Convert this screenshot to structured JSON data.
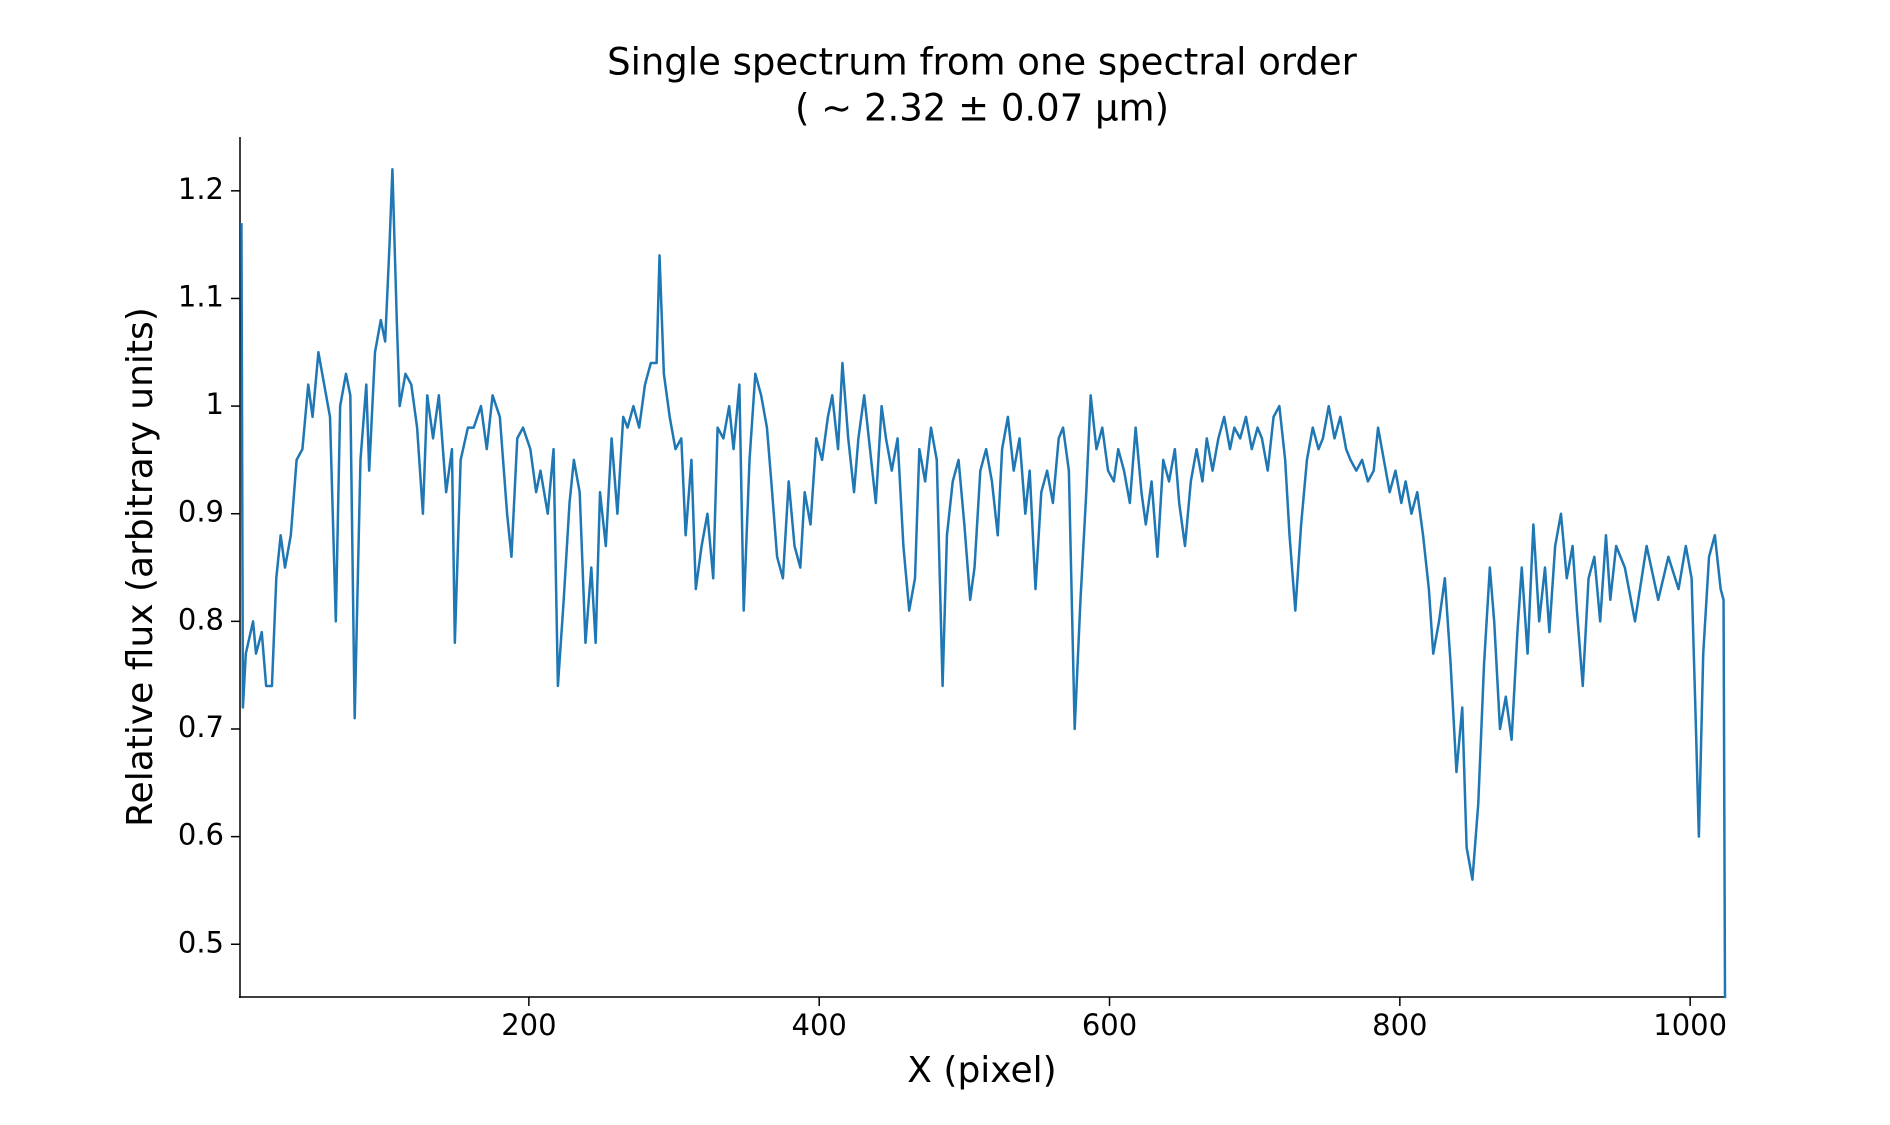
{
  "chart_data": {
    "type": "line",
    "title": [
      "Single spectrum from one spectral order",
      "( ∼ 2.32 ± 0.07 μm)"
    ],
    "x_label": "X (pixel)",
    "y_label": "Relative flux (arbitrary units)",
    "color": "#1f77b4",
    "xlim": [
      1,
      1024
    ],
    "ylim": [
      0.451,
      1.25
    ],
    "xticks": [
      200,
      400,
      600,
      800,
      1000
    ],
    "yticks": [
      0.5,
      0.6,
      0.7,
      0.8,
      0.9,
      1.0,
      1.1,
      1.2
    ],
    "x": [
      2,
      3,
      5,
      10,
      12,
      16,
      19,
      23,
      26,
      29,
      32,
      36,
      40,
      44,
      48,
      51,
      55,
      59,
      63,
      67,
      70,
      74,
      77,
      80,
      84,
      88,
      90,
      94,
      98,
      101,
      104,
      106,
      109,
      111,
      115,
      119,
      123,
      127,
      130,
      134,
      138,
      143,
      147,
      149,
      153,
      158,
      162,
      167,
      171,
      175,
      180,
      185,
      188,
      192,
      196,
      201,
      205,
      208,
      213,
      217,
      220,
      224,
      228,
      231,
      235,
      239,
      243,
      246,
      249,
      253,
      257,
      261,
      265,
      268,
      272,
      276,
      280,
      284,
      288,
      290,
      293,
      297,
      301,
      305,
      308,
      312,
      315,
      319,
      323,
      327,
      330,
      334,
      338,
      341,
      345,
      348,
      352,
      356,
      360,
      364,
      367,
      371,
      375,
      379,
      383,
      387,
      390,
      394,
      398,
      402,
      406,
      409,
      413,
      416,
      420,
      424,
      427,
      431,
      435,
      439,
      443,
      446,
      450,
      454,
      458,
      462,
      466,
      469,
      473,
      477,
      481,
      485,
      488,
      492,
      496,
      500,
      504,
      507,
      511,
      515,
      519,
      523,
      526,
      530,
      534,
      538,
      542,
      545,
      549,
      553,
      557,
      561,
      565,
      568,
      572,
      576,
      580,
      584,
      587,
      591,
      595,
      599,
      603,
      606,
      610,
      614,
      618,
      622,
      625,
      629,
      633,
      637,
      641,
      645,
      648,
      652,
      656,
      660,
      664,
      667,
      671,
      675,
      679,
      683,
      686,
      690,
      694,
      698,
      702,
      705,
      709,
      713,
      717,
      721,
      724,
      728,
      732,
      736,
      740,
      744,
      747,
      751,
      755,
      759,
      763,
      766,
      770,
      774,
      778,
      782,
      785,
      789,
      793,
      797,
      801,
      804,
      808,
      812,
      816,
      820,
      823,
      827,
      831,
      835,
      839,
      843,
      846,
      850,
      854,
      858,
      862,
      865,
      869,
      873,
      877,
      881,
      884,
      888,
      892,
      896,
      900,
      903,
      907,
      911,
      915,
      919,
      922,
      926,
      930,
      934,
      938,
      942,
      945,
      949,
      955,
      962,
      970,
      978,
      985,
      992,
      997,
      1001,
      1004,
      1006,
      1009,
      1013,
      1017,
      1021,
      1023,
      1024
    ],
    "values": [
      1.17,
      0.72,
      0.77,
      0.8,
      0.77,
      0.79,
      0.74,
      0.74,
      0.84,
      0.88,
      0.85,
      0.88,
      0.95,
      0.96,
      1.02,
      0.99,
      1.05,
      1.02,
      0.99,
      0.8,
      1.0,
      1.03,
      1.01,
      0.71,
      0.95,
      1.02,
      0.94,
      1.05,
      1.08,
      1.06,
      1.15,
      1.22,
      1.08,
      1.0,
      1.03,
      1.02,
      0.98,
      0.9,
      1.01,
      0.97,
      1.01,
      0.92,
      0.96,
      0.78,
      0.95,
      0.98,
      0.98,
      1.0,
      0.96,
      1.01,
      0.99,
      0.9,
      0.86,
      0.97,
      0.98,
      0.96,
      0.92,
      0.94,
      0.9,
      0.96,
      0.74,
      0.82,
      0.91,
      0.95,
      0.92,
      0.78,
      0.85,
      0.78,
      0.92,
      0.87,
      0.97,
      0.9,
      0.99,
      0.98,
      1.0,
      0.98,
      1.02,
      1.04,
      1.04,
      1.14,
      1.03,
      0.99,
      0.96,
      0.97,
      0.88,
      0.95,
      0.83,
      0.87,
      0.9,
      0.84,
      0.98,
      0.97,
      1.0,
      0.96,
      1.02,
      0.81,
      0.95,
      1.03,
      1.01,
      0.98,
      0.93,
      0.86,
      0.84,
      0.93,
      0.87,
      0.85,
      0.92,
      0.89,
      0.97,
      0.95,
      0.99,
      1.01,
      0.96,
      1.04,
      0.97,
      0.92,
      0.97,
      1.01,
      0.96,
      0.91,
      1.0,
      0.97,
      0.94,
      0.97,
      0.87,
      0.81,
      0.84,
      0.96,
      0.93,
      0.98,
      0.95,
      0.74,
      0.88,
      0.93,
      0.95,
      0.89,
      0.82,
      0.85,
      0.94,
      0.96,
      0.93,
      0.88,
      0.96,
      0.99,
      0.94,
      0.97,
      0.9,
      0.94,
      0.83,
      0.92,
      0.94,
      0.91,
      0.97,
      0.98,
      0.94,
      0.7,
      0.82,
      0.92,
      1.01,
      0.96,
      0.98,
      0.94,
      0.93,
      0.96,
      0.94,
      0.91,
      0.98,
      0.92,
      0.89,
      0.93,
      0.86,
      0.95,
      0.93,
      0.96,
      0.91,
      0.87,
      0.93,
      0.96,
      0.93,
      0.97,
      0.94,
      0.97,
      0.99,
      0.96,
      0.98,
      0.97,
      0.99,
      0.96,
      0.98,
      0.97,
      0.94,
      0.99,
      1.0,
      0.95,
      0.88,
      0.81,
      0.89,
      0.95,
      0.98,
      0.96,
      0.97,
      1.0,
      0.97,
      0.99,
      0.96,
      0.95,
      0.94,
      0.95,
      0.93,
      0.94,
      0.98,
      0.95,
      0.92,
      0.94,
      0.91,
      0.93,
      0.9,
      0.92,
      0.88,
      0.83,
      0.77,
      0.8,
      0.84,
      0.76,
      0.66,
      0.72,
      0.59,
      0.56,
      0.63,
      0.76,
      0.85,
      0.8,
      0.7,
      0.73,
      0.69,
      0.79,
      0.85,
      0.77,
      0.89,
      0.8,
      0.85,
      0.79,
      0.87,
      0.9,
      0.84,
      0.87,
      0.81,
      0.74,
      0.84,
      0.86,
      0.8,
      0.88,
      0.82,
      0.87,
      0.85,
      0.8,
      0.87,
      0.82,
      0.86,
      0.83,
      0.87,
      0.84,
      0.7,
      0.6,
      0.77,
      0.86,
      0.88,
      0.83,
      0.82,
      0.45
    ]
  }
}
